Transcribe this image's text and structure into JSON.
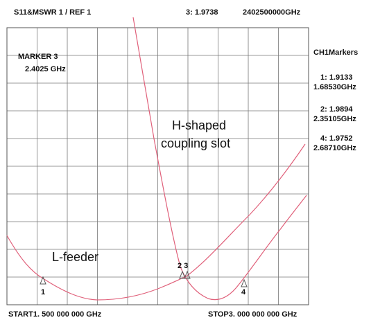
{
  "header": {
    "trace": "S11&MSWR  1  /  REF 1",
    "marker_value": "3: 1.9738",
    "marker_freq": "2402500000GHz"
  },
  "active_marker": {
    "name": "MARKER 3",
    "freq": "2.4025 GHz"
  },
  "marker_list": {
    "title": "CH1Markers",
    "items": [
      {
        "value": "1: 1.9133",
        "freq": "1.68530GHz"
      },
      {
        "value": "2: 1.9894",
        "freq": "2.35105GHz"
      },
      {
        "value": "4: 1.9752",
        "freq": "2.68710GHz"
      }
    ]
  },
  "annotations": {
    "slot_line1": "H-shaped",
    "slot_line2": "coupling slot",
    "feeder": "L-feeder"
  },
  "marker_labels": [
    "1",
    "2 3",
    "4"
  ],
  "footer": {
    "start": "START1. 500 000 000 GHz",
    "stop": "STOP3. 000 000 000 GHz"
  }
}
